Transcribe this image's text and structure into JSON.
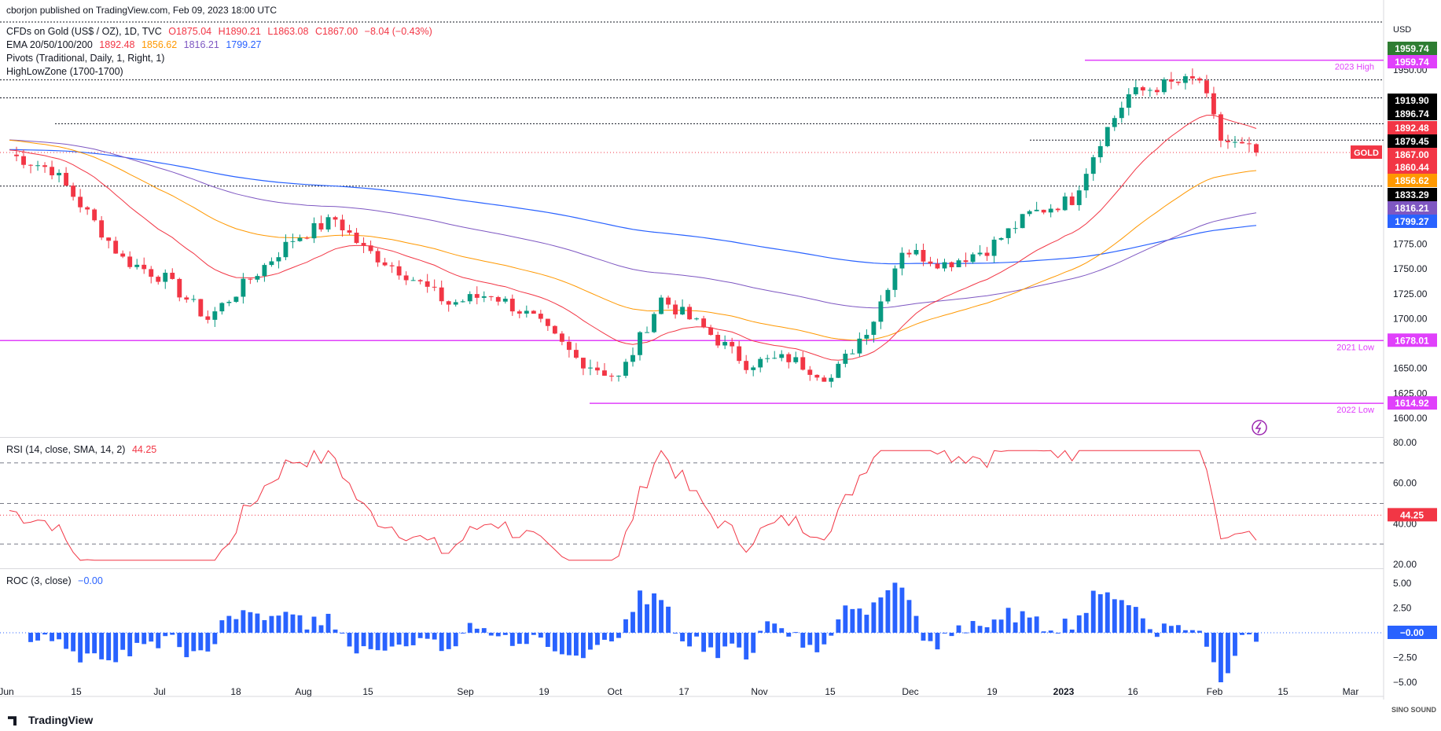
{
  "publisher": "cborjon published on TradingView.com, Feb 09, 2023 18:00 UTC",
  "legend": {
    "symbol": "CFDs on Gold (US$ / OZ), 1D, TVC",
    "ohlc": {
      "o": "O1875.04",
      "h": "H1890.21",
      "l": "L1863.08",
      "c": "C1867.00",
      "chg": "−8.04 (−0.43%)"
    },
    "ema_label": "EMA 20/50/100/200",
    "ema_values": [
      "1892.48",
      "1856.62",
      "1816.21",
      "1799.27"
    ],
    "pivots": "Pivots (Traditional, Daily, 1, Right, 1)",
    "hlz": "HighLowZone (1700-1700)",
    "rsi_label": "RSI (14, close, SMA, 14, 2)",
    "rsi_value": "44.25",
    "roc_label": "ROC (3, close)",
    "roc_value": "−0.00"
  },
  "currency": "USD",
  "colors": {
    "up": "#089981",
    "down": "#f23645",
    "ema20": "#f23645",
    "ema50": "#ff9800",
    "ema100": "#7e57c2",
    "ema200": "#2962ff",
    "magenta": "#e040fb",
    "rsi": "#f23645",
    "roc": "#2962ff"
  },
  "price_badges": [
    {
      "label": "1959.74",
      "bg": "#2e7d32"
    },
    {
      "label": "1959.74",
      "bg": "#e040fb"
    },
    {
      "label": "1919.90",
      "bg": "#000000"
    },
    {
      "label": "1896.74",
      "bg": "#000000"
    },
    {
      "label": "1892.48",
      "bg": "#f23645"
    },
    {
      "label": "1879.45",
      "bg": "#000000"
    },
    {
      "label": "1867.00",
      "bg": "#f23645"
    },
    {
      "label": "1860.44",
      "bg": "#f23645"
    },
    {
      "label": "1856.62",
      "bg": "#ff9800"
    },
    {
      "label": "1833.29",
      "bg": "#000000"
    },
    {
      "label": "1816.21",
      "bg": "#7e57c2"
    },
    {
      "label": "1799.27",
      "bg": "#2962ff"
    },
    {
      "label": "1678.01",
      "bg": "#e040fb"
    },
    {
      "label": "1614.92",
      "bg": "#e040fb"
    }
  ],
  "gold_label": "GOLD",
  "annotations": [
    "2023 High",
    "2021 Low",
    "2022 Low"
  ],
  "rsi_badge": "44.25",
  "roc_badge": "−0.00",
  "footer": "TradingView",
  "watermark": "SINO SOUND",
  "chart_data": {
    "type": "candlestick",
    "price_axis": {
      "ticks": [
        1600,
        1625,
        1650,
        1700,
        1725,
        1750,
        1775,
        1950
      ],
      "range": [
        1590,
        1985
      ]
    },
    "rsi_axis": {
      "ticks": [
        20,
        40,
        60,
        80
      ],
      "range": [
        12,
        84
      ],
      "bands": [
        30,
        50,
        70
      ]
    },
    "roc_axis": {
      "ticks": [
        -5,
        -2.5,
        0,
        2.5,
        5
      ],
      "labels": [
        "−5.00",
        "−2.50",
        "0.00",
        "2.50",
        "5.00"
      ],
      "range": [
        -5.5,
        6
      ]
    },
    "x_labels": [
      "Jun",
      "15",
      "Jul",
      "18",
      "Aug",
      "15",
      "Sep",
      "19",
      "Oct",
      "17",
      "Nov",
      "15",
      "Dec",
      "19",
      "2023",
      "16",
      "Feb",
      "15",
      "Mar"
    ],
    "levels": {
      "high_2023": 1959.74,
      "low_2021": 1678.01,
      "low_2022": 1614.92
    },
    "last_close": 1867.0
  }
}
